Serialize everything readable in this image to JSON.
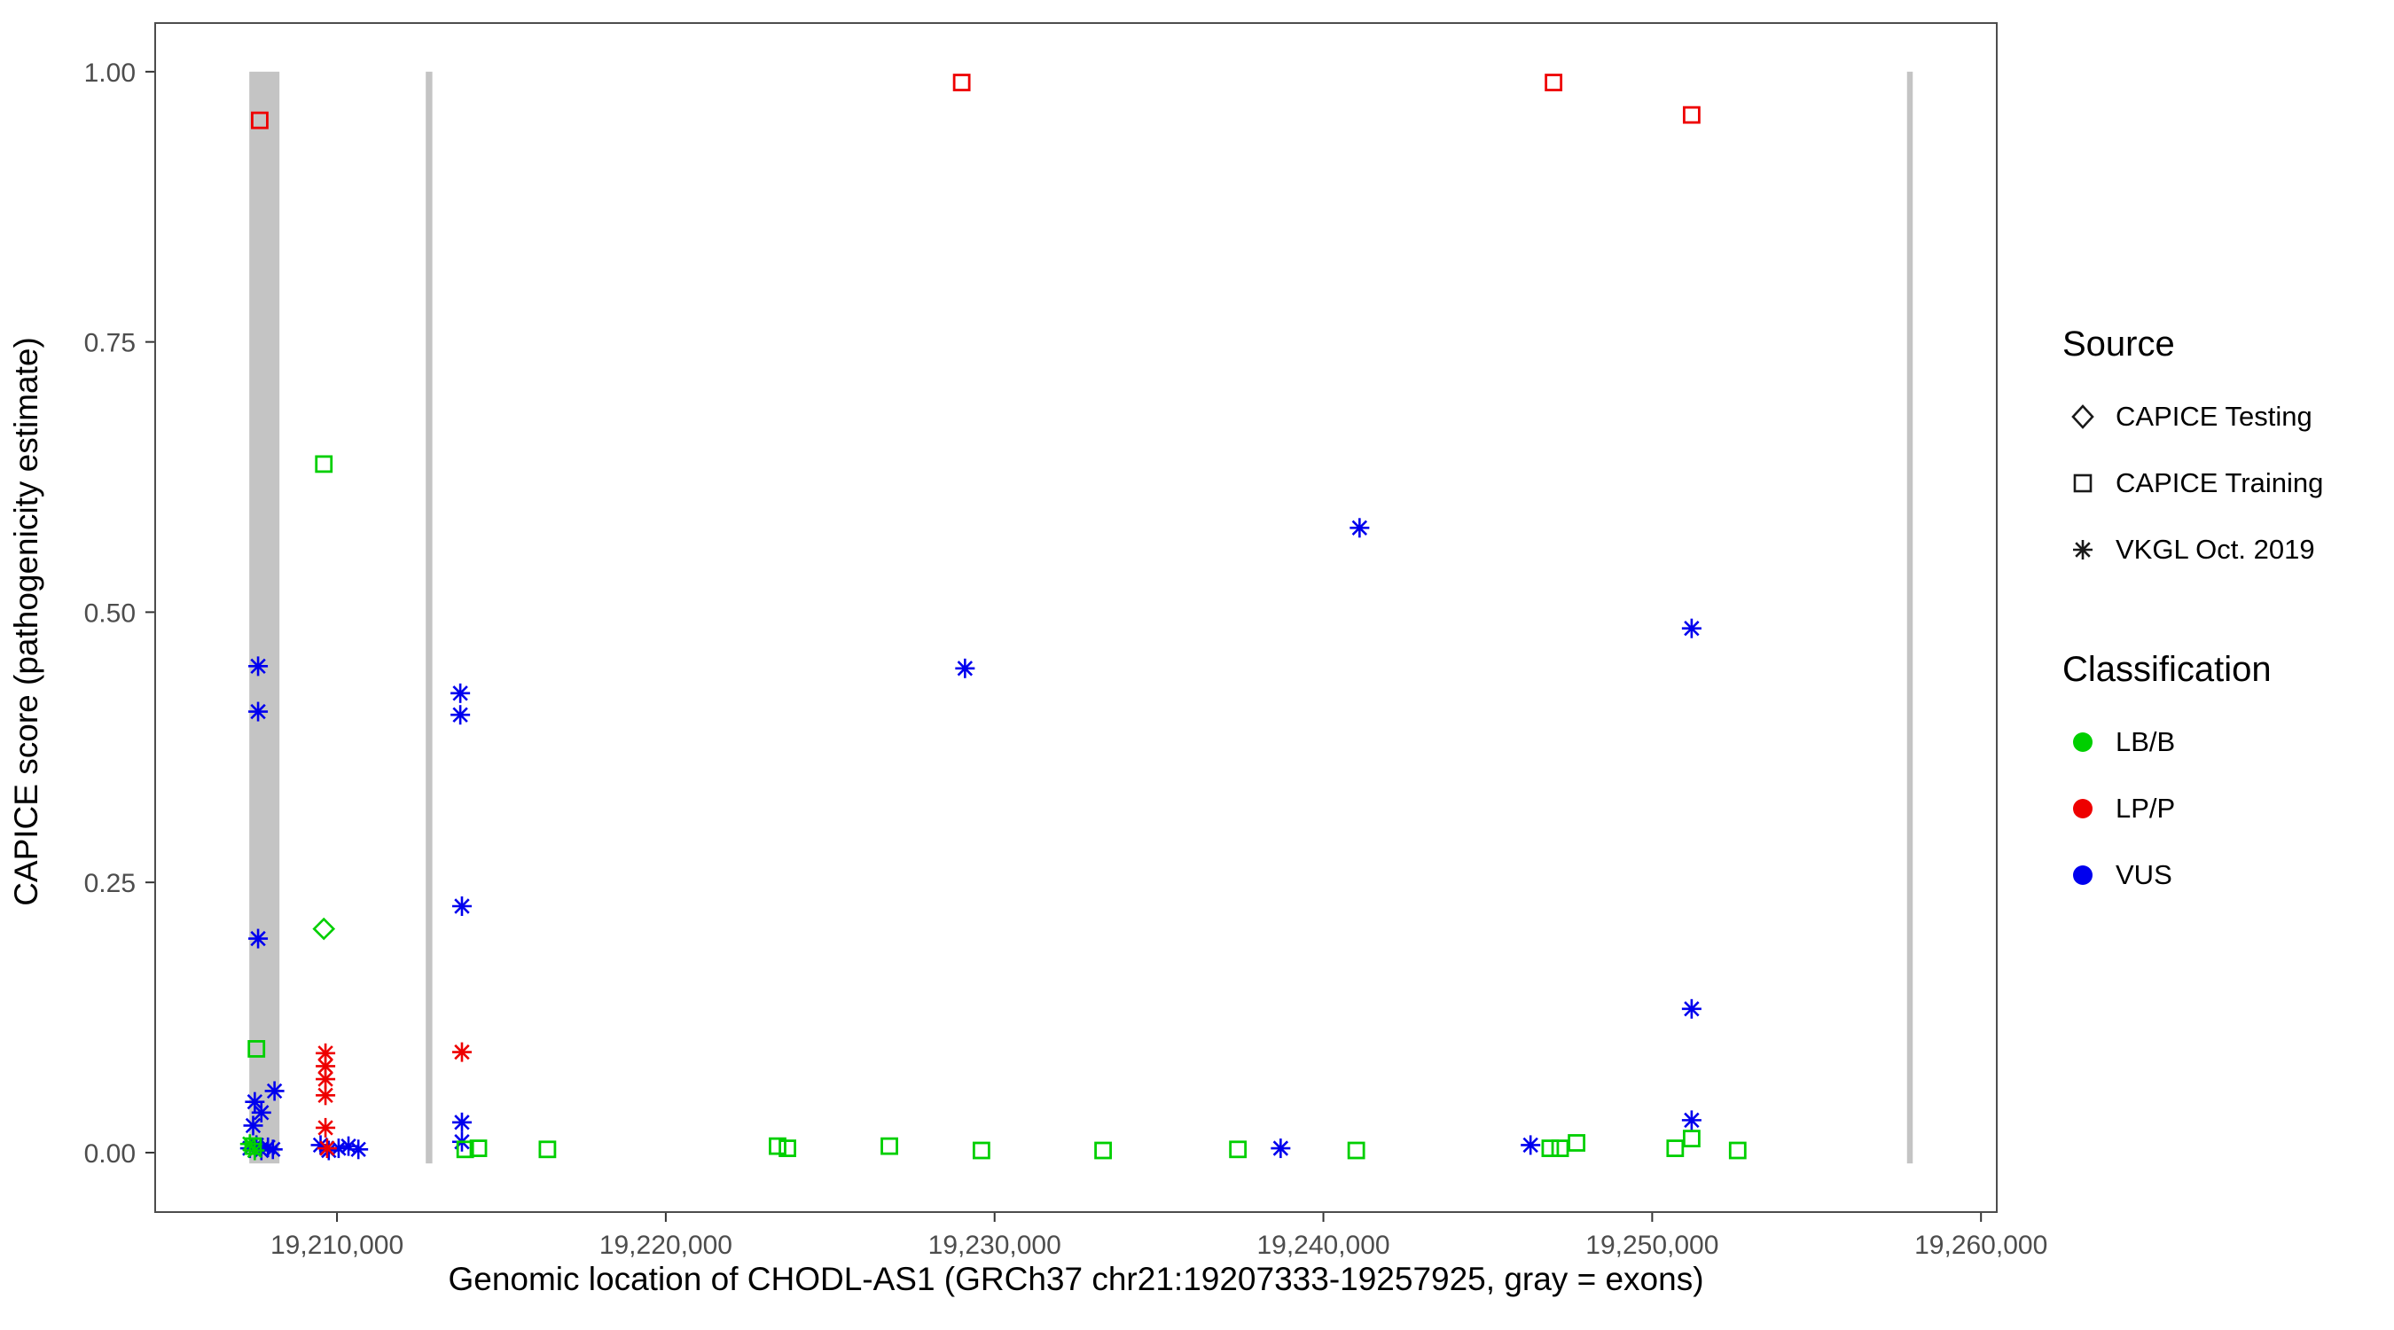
{
  "legend": {
    "source": {
      "title": "Source",
      "items": [
        {
          "label": "CAPICE Testing",
          "shape": "diamond"
        },
        {
          "label": "CAPICE Training",
          "shape": "square"
        },
        {
          "label": "VKGL Oct. 2019",
          "shape": "asterisk"
        }
      ]
    },
    "classification": {
      "title": "Classification",
      "items": [
        {
          "label": "LB/B",
          "class_key": "LBB"
        },
        {
          "label": "LP/P",
          "class_key": "LPP"
        },
        {
          "label": "VUS",
          "class_key": "VUS"
        }
      ]
    }
  },
  "chart_data": {
    "type": "scatter",
    "title": "",
    "xlabel": "Genomic location of CHODL-AS1 (GRCh37 chr21:19207333-19257925, gray = exons)",
    "ylabel": "CAPICE score (pathogenicity estimate)",
    "xlim": [
      19204470,
      19260480
    ],
    "ylim": [
      -0.055,
      1.045
    ],
    "x_ticks": [
      19210000,
      19220000,
      19230000,
      19240000,
      19250000,
      19260000
    ],
    "x_tick_labels": [
      "19,210,000",
      "19,220,000",
      "19,230,000",
      "19,240,000",
      "19,250,000",
      "19,260,000"
    ],
    "y_ticks": [
      0.0,
      0.25,
      0.5,
      0.75,
      1.0
    ],
    "y_tick_labels": [
      "0.00",
      "0.25",
      "0.50",
      "0.75",
      "1.00"
    ],
    "grid": false,
    "legend_position": "right",
    "colors": {
      "LBB": "#00cf00",
      "LPP": "#ee0000",
      "VUS": "#0000ee",
      "exon": "#c4c4c4",
      "panel_border": "#4d4d4d",
      "tick": "#333333",
      "legend_glyph": "#1a1a1a"
    },
    "shape_by_source": {
      "testing": "diamond",
      "training": "square",
      "vkgl": "asterisk"
    },
    "exons": [
      {
        "start": 19207333,
        "end": 19208250
      },
      {
        "start": 19212700,
        "end": 19212900
      },
      {
        "start": 19257750,
        "end": 19257925
      }
    ],
    "points": [
      {
        "x": 19207650,
        "y": 0.955,
        "source": "training",
        "cls": "LPP"
      },
      {
        "x": 19229000,
        "y": 0.99,
        "source": "training",
        "cls": "LPP"
      },
      {
        "x": 19247000,
        "y": 0.99,
        "source": "training",
        "cls": "LPP"
      },
      {
        "x": 19251200,
        "y": 0.96,
        "source": "training",
        "cls": "LPP"
      },
      {
        "x": 19209600,
        "y": 0.637,
        "source": "training",
        "cls": "LBB"
      },
      {
        "x": 19207550,
        "y": 0.096,
        "source": "training",
        "cls": "LBB"
      },
      {
        "x": 19209600,
        "y": 0.207,
        "source": "testing",
        "cls": "LBB"
      },
      {
        "x": 19241100,
        "y": 0.578,
        "source": "vkgl",
        "cls": "VUS"
      },
      {
        "x": 19251200,
        "y": 0.485,
        "source": "vkgl",
        "cls": "VUS"
      },
      {
        "x": 19207600,
        "y": 0.45,
        "source": "vkgl",
        "cls": "VUS"
      },
      {
        "x": 19229100,
        "y": 0.448,
        "source": "vkgl",
        "cls": "VUS"
      },
      {
        "x": 19207600,
        "y": 0.408,
        "source": "vkgl",
        "cls": "VUS"
      },
      {
        "x": 19213750,
        "y": 0.425,
        "source": "vkgl",
        "cls": "VUS"
      },
      {
        "x": 19213750,
        "y": 0.405,
        "source": "vkgl",
        "cls": "VUS"
      },
      {
        "x": 19213800,
        "y": 0.228,
        "source": "vkgl",
        "cls": "VUS"
      },
      {
        "x": 19207600,
        "y": 0.198,
        "source": "vkgl",
        "cls": "VUS"
      },
      {
        "x": 19251200,
        "y": 0.133,
        "source": "vkgl",
        "cls": "VUS"
      },
      {
        "x": 19251200,
        "y": 0.03,
        "source": "vkgl",
        "cls": "VUS"
      },
      {
        "x": 19208100,
        "y": 0.057,
        "source": "vkgl",
        "cls": "VUS"
      },
      {
        "x": 19207500,
        "y": 0.047,
        "source": "vkgl",
        "cls": "VUS"
      },
      {
        "x": 19207700,
        "y": 0.037,
        "source": "vkgl",
        "cls": "VUS"
      },
      {
        "x": 19207450,
        "y": 0.025,
        "source": "vkgl",
        "cls": "VUS"
      },
      {
        "x": 19213800,
        "y": 0.028,
        "source": "vkgl",
        "cls": "VUS"
      },
      {
        "x": 19213800,
        "y": 0.01,
        "source": "vkgl",
        "cls": "VUS"
      },
      {
        "x": 19207350,
        "y": 0.004,
        "source": "vkgl",
        "cls": "VUS"
      },
      {
        "x": 19207550,
        "y": 0.007,
        "source": "vkgl",
        "cls": "VUS"
      },
      {
        "x": 19207700,
        "y": 0.002,
        "source": "vkgl",
        "cls": "VUS"
      },
      {
        "x": 19207900,
        "y": 0.005,
        "source": "vkgl",
        "cls": "VUS"
      },
      {
        "x": 19208050,
        "y": 0.003,
        "source": "vkgl",
        "cls": "VUS"
      },
      {
        "x": 19209500,
        "y": 0.007,
        "source": "vkgl",
        "cls": "VUS"
      },
      {
        "x": 19209750,
        "y": 0.002,
        "source": "vkgl",
        "cls": "VUS"
      },
      {
        "x": 19210050,
        "y": 0.004,
        "source": "vkgl",
        "cls": "VUS"
      },
      {
        "x": 19210350,
        "y": 0.006,
        "source": "vkgl",
        "cls": "VUS"
      },
      {
        "x": 19210650,
        "y": 0.003,
        "source": "vkgl",
        "cls": "VUS"
      },
      {
        "x": 19238700,
        "y": 0.004,
        "source": "vkgl",
        "cls": "VUS"
      },
      {
        "x": 19246300,
        "y": 0.007,
        "source": "vkgl",
        "cls": "VUS"
      },
      {
        "x": 19213800,
        "y": 0.093,
        "source": "vkgl",
        "cls": "LPP"
      },
      {
        "x": 19209650,
        "y": 0.092,
        "source": "vkgl",
        "cls": "LPP"
      },
      {
        "x": 19209650,
        "y": 0.08,
        "source": "vkgl",
        "cls": "LPP"
      },
      {
        "x": 19209650,
        "y": 0.068,
        "source": "vkgl",
        "cls": "LPP"
      },
      {
        "x": 19209650,
        "y": 0.053,
        "source": "vkgl",
        "cls": "LPP"
      },
      {
        "x": 19209650,
        "y": 0.023,
        "source": "vkgl",
        "cls": "LPP"
      },
      {
        "x": 19209700,
        "y": 0.004,
        "source": "vkgl",
        "cls": "LPP"
      },
      {
        "x": 19207350,
        "y": 0.008,
        "source": "vkgl",
        "cls": "LBB"
      },
      {
        "x": 19207500,
        "y": 0.002,
        "source": "vkgl",
        "cls": "LBB"
      },
      {
        "x": 19207450,
        "y": 0.006,
        "source": "training",
        "cls": "LBB"
      },
      {
        "x": 19213900,
        "y": 0.003,
        "source": "training",
        "cls": "LBB"
      },
      {
        "x": 19214300,
        "y": 0.004,
        "source": "training",
        "cls": "LBB"
      },
      {
        "x": 19216400,
        "y": 0.003,
        "source": "training",
        "cls": "LBB"
      },
      {
        "x": 19223400,
        "y": 0.006,
        "source": "training",
        "cls": "LBB"
      },
      {
        "x": 19223700,
        "y": 0.004,
        "source": "training",
        "cls": "LBB"
      },
      {
        "x": 19226800,
        "y": 0.006,
        "source": "training",
        "cls": "LBB"
      },
      {
        "x": 19229600,
        "y": 0.002,
        "source": "training",
        "cls": "LBB"
      },
      {
        "x": 19233300,
        "y": 0.002,
        "source": "training",
        "cls": "LBB"
      },
      {
        "x": 19237400,
        "y": 0.003,
        "source": "training",
        "cls": "LBB"
      },
      {
        "x": 19241000,
        "y": 0.002,
        "source": "training",
        "cls": "LBB"
      },
      {
        "x": 19246900,
        "y": 0.004,
        "source": "training",
        "cls": "LBB"
      },
      {
        "x": 19247200,
        "y": 0.004,
        "source": "training",
        "cls": "LBB"
      },
      {
        "x": 19247700,
        "y": 0.009,
        "source": "training",
        "cls": "LBB"
      },
      {
        "x": 19250700,
        "y": 0.004,
        "source": "training",
        "cls": "LBB"
      },
      {
        "x": 19251200,
        "y": 0.013,
        "source": "training",
        "cls": "LBB"
      },
      {
        "x": 19252600,
        "y": 0.002,
        "source": "training",
        "cls": "LBB"
      }
    ]
  }
}
